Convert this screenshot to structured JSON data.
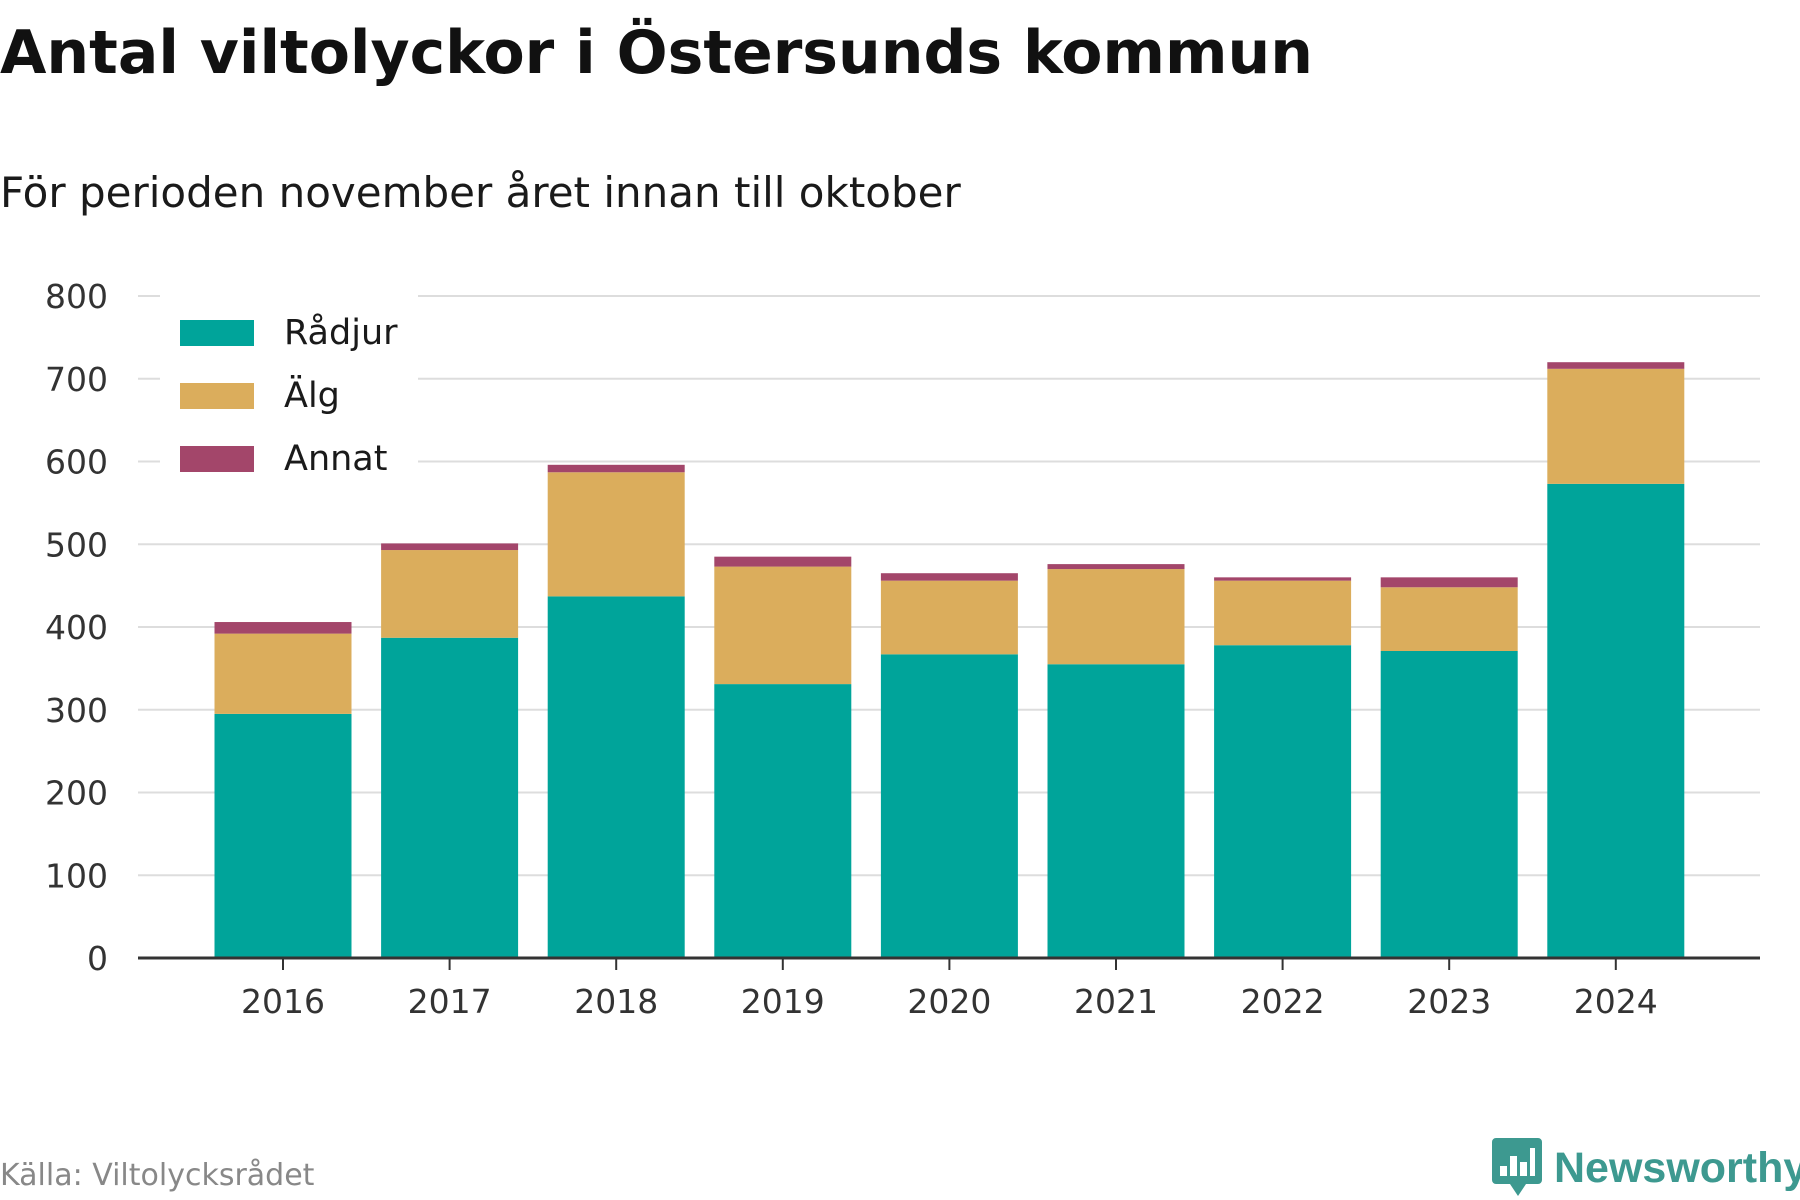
{
  "header": {
    "title": "Antal viltolyckor i Östersunds kommun",
    "subtitle": "För perioden november året innan till oktober"
  },
  "footer": {
    "source": "Källa: Viltolycksrådet",
    "brand": "Newsworthy",
    "brand_icon": "bar-chart-icon",
    "brand_color": "#3d9990"
  },
  "chart_data": {
    "type": "bar",
    "stacked": true,
    "categories": [
      "2016",
      "2017",
      "2018",
      "2019",
      "2020",
      "2021",
      "2022",
      "2023",
      "2024"
    ],
    "series": [
      {
        "name": "Rådjur",
        "color": "#00a49a",
        "values": [
          295,
          387,
          437,
          331,
          367,
          355,
          378,
          371,
          573
        ]
      },
      {
        "name": "Älg",
        "color": "#dbad5c",
        "values": [
          97,
          106,
          150,
          142,
          89,
          115,
          78,
          77,
          139
        ]
      },
      {
        "name": "Annat",
        "color": "#a3466a",
        "values": [
          14,
          8,
          9,
          12,
          9,
          6,
          4,
          12,
          8
        ]
      }
    ],
    "ylim": [
      0,
      800
    ],
    "yticks": [
      0,
      100,
      200,
      300,
      400,
      500,
      600,
      700,
      800
    ],
    "grid": true,
    "legend": "top-left",
    "xlabel": "",
    "ylabel": ""
  }
}
